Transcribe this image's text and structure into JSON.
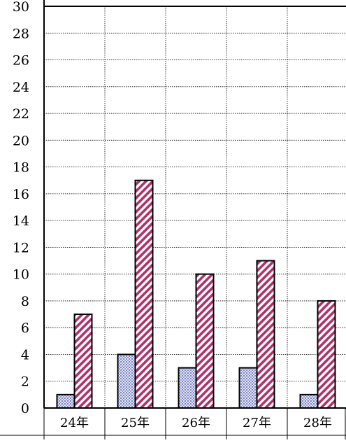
{
  "chart_data": {
    "type": "bar",
    "categories": [
      "24年",
      "25年",
      "26年",
      "27年",
      "28年"
    ],
    "series": [
      {
        "values": [
          1,
          4,
          3,
          3,
          1
        ],
        "color": "#aab0dc",
        "pattern": "dotted"
      },
      {
        "values": [
          7,
          17,
          10,
          11,
          8
        ],
        "color": "#b0306a",
        "pattern": "diagonal-stripes"
      }
    ],
    "ylim": [
      0,
      30
    ],
    "yticks": [
      0,
      2,
      4,
      6,
      8,
      10,
      12,
      14,
      16,
      18,
      20,
      22,
      24,
      26,
      28,
      30
    ],
    "grid": "dotted",
    "legend": "none",
    "title": "",
    "xlabel": "",
    "ylabel": ""
  }
}
